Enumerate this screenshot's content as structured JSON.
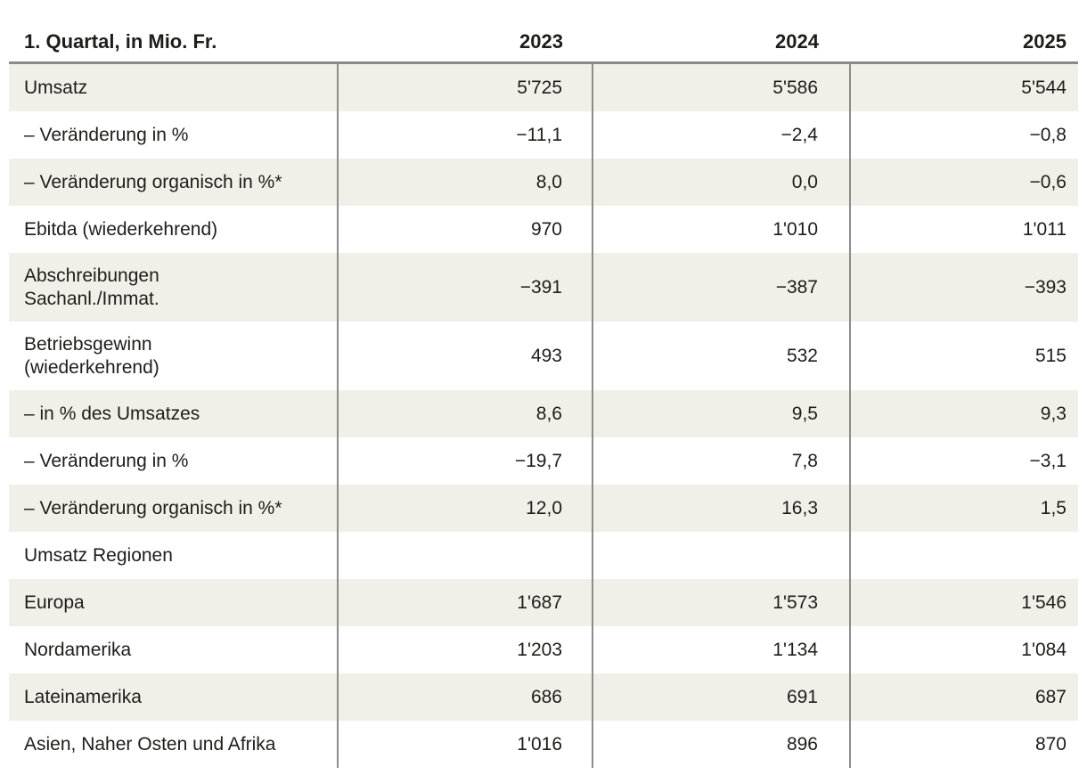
{
  "styles": {
    "row_shade_color": "#f1f0e8",
    "rule_color": "#8a8a8a",
    "vline_color": "#8c8c8c",
    "text_color": "#1d1d1b"
  },
  "chart_data": {
    "type": "table",
    "title_cell": "1. Quartal, in Mio. Fr.",
    "columns": [
      "2023",
      "2024",
      "2025"
    ],
    "rows": [
      {
        "label": "Umsatz",
        "values": [
          "5'725",
          "5'586",
          "5'544"
        ],
        "two_line": false,
        "shaded": true
      },
      {
        "label": "– Veränderung in %",
        "values": [
          "−11,1",
          "−2,4",
          "−0,8"
        ],
        "two_line": false,
        "shaded": false
      },
      {
        "label": "– Veränderung organisch in %*",
        "values": [
          "8,0",
          "0,0",
          "−0,6"
        ],
        "two_line": false,
        "shaded": true
      },
      {
        "label": "Ebitda (wiederkehrend)",
        "values": [
          "970",
          "1'010",
          "1'011"
        ],
        "two_line": false,
        "shaded": false
      },
      {
        "label": "Abschreibungen\nSachanl./Immat.",
        "values": [
          "−391",
          "−387",
          "−393"
        ],
        "two_line": true,
        "shaded": true
      },
      {
        "label": "Betriebsgewinn\n(wiederkehrend)",
        "values": [
          "493",
          "532",
          "515"
        ],
        "two_line": true,
        "shaded": false
      },
      {
        "label": "– in % des Umsatzes",
        "values": [
          "8,6",
          "9,5",
          "9,3"
        ],
        "two_line": false,
        "shaded": true
      },
      {
        "label": "– Veränderung in %",
        "values": [
          "−19,7",
          "7,8",
          "−3,1"
        ],
        "two_line": false,
        "shaded": false
      },
      {
        "label": "– Veränderung organisch in %*",
        "values": [
          "12,0",
          "16,3",
          "1,5"
        ],
        "two_line": false,
        "shaded": true
      },
      {
        "label": "Umsatz Regionen",
        "values": [
          "",
          "",
          ""
        ],
        "two_line": false,
        "shaded": false
      },
      {
        "label": "Europa",
        "values": [
          "1'687",
          "1'573",
          "1'546"
        ],
        "two_line": false,
        "shaded": true
      },
      {
        "label": "Nordamerika",
        "values": [
          "1'203",
          "1'134",
          "1'084"
        ],
        "two_line": false,
        "shaded": false
      },
      {
        "label": "Lateinamerika",
        "values": [
          "686",
          "691",
          "687"
        ],
        "two_line": false,
        "shaded": true
      },
      {
        "label": "Asien, Naher Osten und Afrika",
        "values": [
          "1'016",
          "896",
          "870"
        ],
        "two_line": false,
        "shaded": false
      }
    ]
  }
}
